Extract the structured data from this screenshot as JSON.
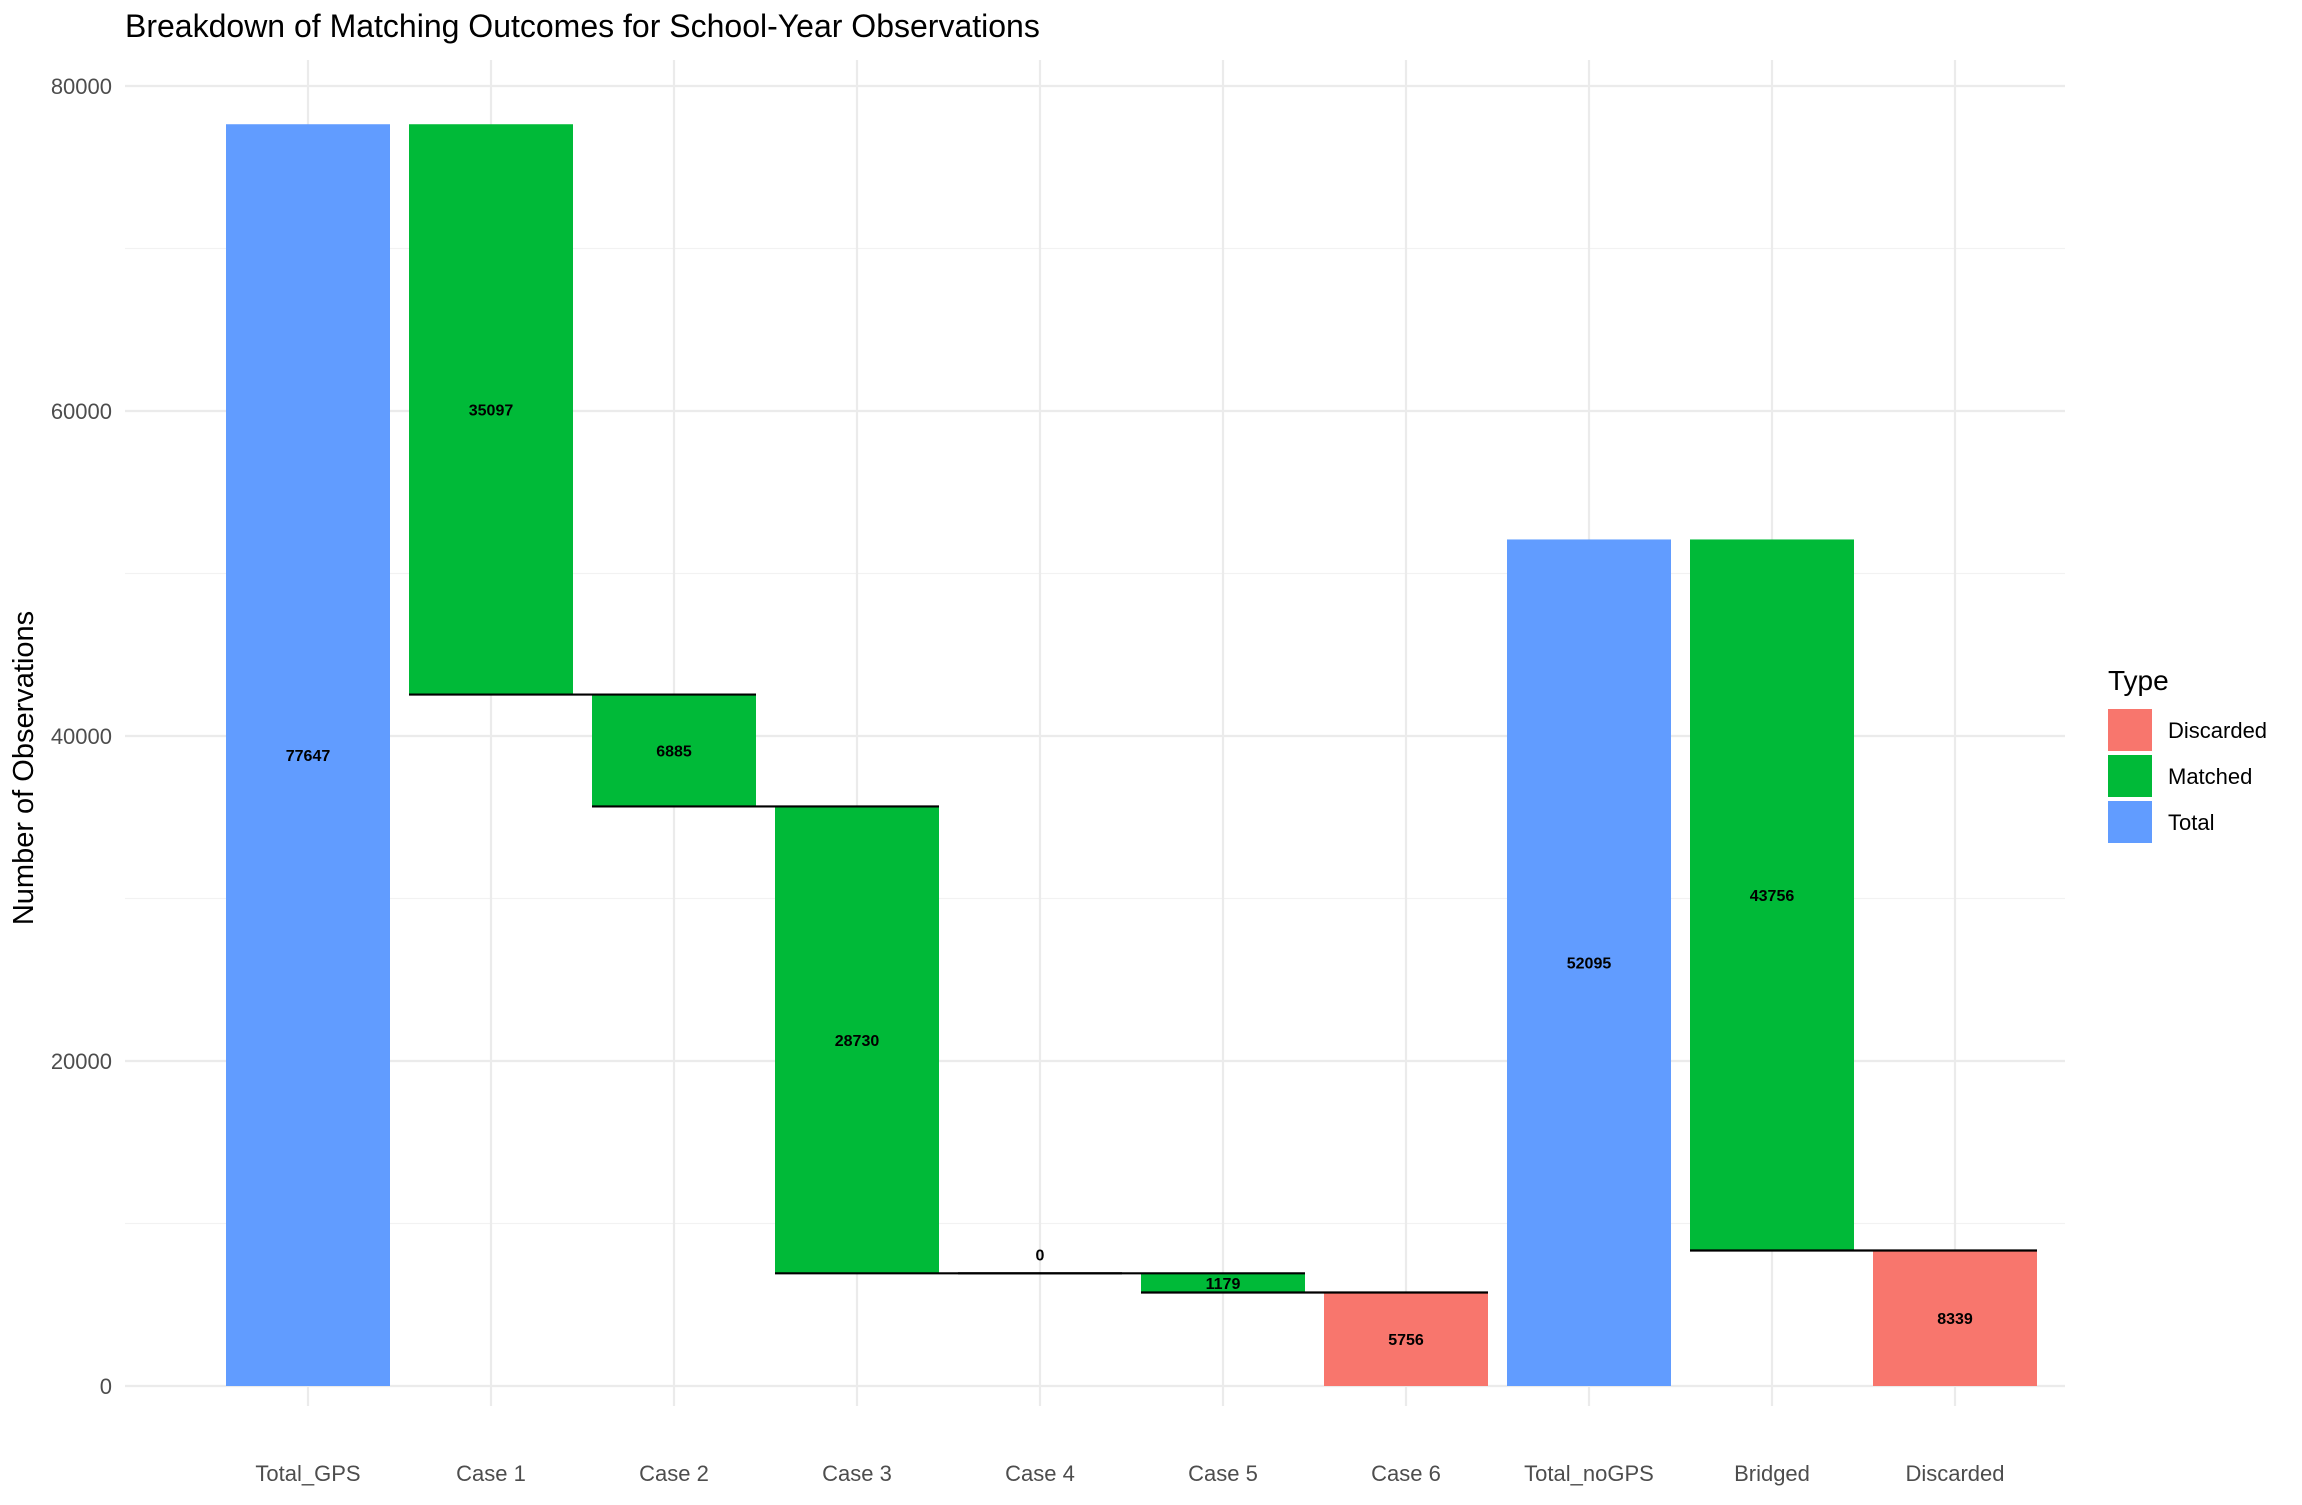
{
  "chart_data": {
    "type": "bar",
    "subtype": "waterfall",
    "title": "Breakdown of Matching Outcomes for School-Year Observations",
    "xlabel": "",
    "ylabel": "Number of Observations",
    "ylim": [
      0,
      80000
    ],
    "y_ticks": [
      0,
      20000,
      40000,
      60000,
      80000
    ],
    "y_tick_labels": [
      "0",
      "20000",
      "40000",
      "60000",
      "80000"
    ],
    "grid": true,
    "legend": {
      "title": "Type",
      "placement": "right"
    },
    "types": [
      {
        "name": "Discarded",
        "color": "#F8766D"
      },
      {
        "name": "Matched",
        "color": "#00BA38"
      },
      {
        "name": "Total",
        "color": "#619CFF"
      }
    ],
    "categories": [
      "Total_GPS",
      "Case 1",
      "Case 2",
      "Case 3",
      "Case 4",
      "Case 5",
      "Case 6",
      "Total_noGPS",
      "Bridged",
      "Discarded"
    ],
    "bars": [
      {
        "category": "Total_GPS",
        "type": "Total",
        "start": 0,
        "end": 77647,
        "label": "77647"
      },
      {
        "category": "Case 1",
        "type": "Matched",
        "start": 42550,
        "end": 77647,
        "label": "35097"
      },
      {
        "category": "Case 2",
        "type": "Matched",
        "start": 35665,
        "end": 42550,
        "label": "6885"
      },
      {
        "category": "Case 3",
        "type": "Matched",
        "start": 6935,
        "end": 35665,
        "label": "28730"
      },
      {
        "category": "Case 4",
        "type": "Matched",
        "start": 6935,
        "end": 6935,
        "label": "0"
      },
      {
        "category": "Case 5",
        "type": "Matched",
        "start": 5756,
        "end": 6935,
        "label": "1179"
      },
      {
        "category": "Case 6",
        "type": "Discarded",
        "start": 0,
        "end": 5756,
        "label": "5756"
      },
      {
        "category": "Total_noGPS",
        "type": "Total",
        "start": 0,
        "end": 52095,
        "label": "52095"
      },
      {
        "category": "Bridged",
        "type": "Matched",
        "start": 8339,
        "end": 52095,
        "label": "43756"
      },
      {
        "category": "Discarded",
        "type": "Discarded",
        "start": 0,
        "end": 8339,
        "label": "8339"
      }
    ],
    "connectors": [
      42550,
      35665,
      6935,
      6935,
      5756,
      8339
    ]
  }
}
